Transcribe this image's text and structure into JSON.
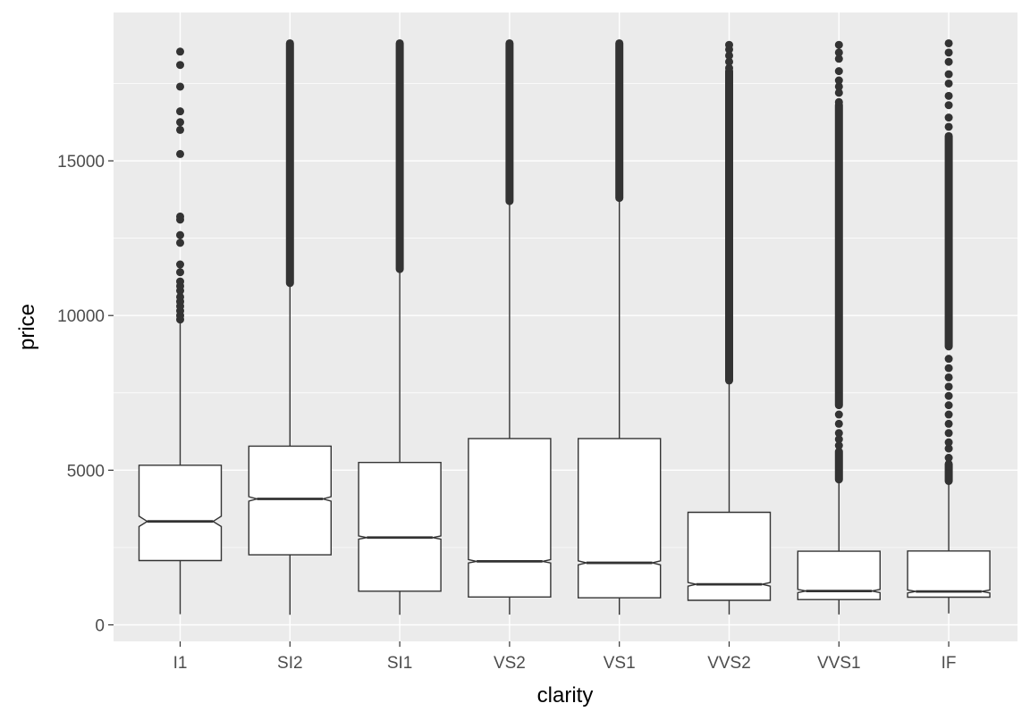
{
  "chart_data": {
    "type": "boxplot",
    "notched": true,
    "xlabel": "clarity",
    "ylabel": "price",
    "categories": [
      "I1",
      "SI2",
      "SI1",
      "VS2",
      "VS1",
      "VVS2",
      "VVS1",
      "IF"
    ],
    "ylim": [
      -500,
      19500
    ],
    "yticks": [
      0,
      5000,
      10000,
      15000
    ],
    "ytick_labels": [
      "0",
      "5000",
      "10000",
      "15000"
    ],
    "grid": true,
    "boxes": [
      {
        "category": "I1",
        "whisker_low": 345,
        "q1": 2080,
        "median": 3344,
        "q3": 5161,
        "whisker_high": 9770,
        "notch_low": 3180,
        "notch_high": 3510,
        "outliers": [
          9870,
          10000,
          10150,
          10300,
          10450,
          10600,
          10800,
          10950,
          11100,
          11400,
          11650,
          12350,
          12600,
          13100,
          13200,
          15220,
          16000,
          16250,
          16600,
          17400,
          18100,
          18530
        ]
      },
      {
        "category": "SI2",
        "whisker_low": 326,
        "q1": 2264,
        "median": 4072,
        "q3": 5777,
        "whisker_high": 11050,
        "notch_low": 4000,
        "notch_high": 4145,
        "outlier_bands": [
          [
            11050,
            18800
          ]
        ]
      },
      {
        "category": "SI1",
        "whisker_low": 326,
        "q1": 1089,
        "median": 2822,
        "q3": 5250,
        "whisker_high": 11500,
        "notch_low": 2770,
        "notch_high": 2875,
        "outlier_bands": [
          [
            11500,
            18800
          ]
        ]
      },
      {
        "category": "VS2",
        "whisker_low": 334,
        "q1": 900,
        "median": 2054,
        "q3": 6024,
        "whisker_high": 13700,
        "notch_low": 2000,
        "notch_high": 2110,
        "outlier_bands": [
          [
            13700,
            18800
          ]
        ]
      },
      {
        "category": "VS1",
        "whisker_low": 327,
        "q1": 876,
        "median": 2005,
        "q3": 6023,
        "whisker_high": 13800,
        "notch_low": 1940,
        "notch_high": 2070,
        "outlier_bands": [
          [
            13800,
            18800
          ]
        ]
      },
      {
        "category": "VVS2",
        "whisker_low": 336,
        "q1": 794,
        "median": 1311,
        "q3": 3638,
        "whisker_high": 7900,
        "notch_low": 1250,
        "notch_high": 1370,
        "outlier_bands": [
          [
            7900,
            17900
          ]
        ],
        "outliers": [
          18000,
          18200,
          18400,
          18600,
          18750
        ]
      },
      {
        "category": "VVS1",
        "whisker_low": 336,
        "q1": 816,
        "median": 1093,
        "q3": 2379,
        "whisker_high": 4700,
        "notch_low": 1040,
        "notch_high": 1145,
        "outlier_bands": [
          [
            4700,
            5600
          ],
          [
            7100,
            16800
          ]
        ],
        "outliers": [
          5800,
          6000,
          6200,
          6500,
          6800,
          16900,
          17200,
          17400,
          17600,
          17900,
          18300,
          18500,
          18750
        ]
      },
      {
        "category": "IF",
        "whisker_low": 369,
        "q1": 895,
        "median": 1080,
        "q3": 2388,
        "whisker_high": 4650,
        "notch_low": 1030,
        "notch_high": 1130,
        "outlier_bands": [
          [
            4650,
            5200
          ],
          [
            9000,
            15800
          ]
        ],
        "outliers": [
          5400,
          5700,
          5900,
          6200,
          6500,
          6800,
          7100,
          7400,
          7700,
          8000,
          8300,
          8600,
          16100,
          16400,
          16800,
          17100,
          17500,
          17800,
          18200,
          18500,
          18800
        ]
      }
    ],
    "colors": {
      "panel_background": "#ebebeb",
      "grid_major": "#ffffff",
      "box_fill": "#ffffff",
      "box_line": "#333333",
      "outlier": "#333333",
      "tick_text": "#4d4d4d",
      "title_text": "#000000"
    }
  }
}
